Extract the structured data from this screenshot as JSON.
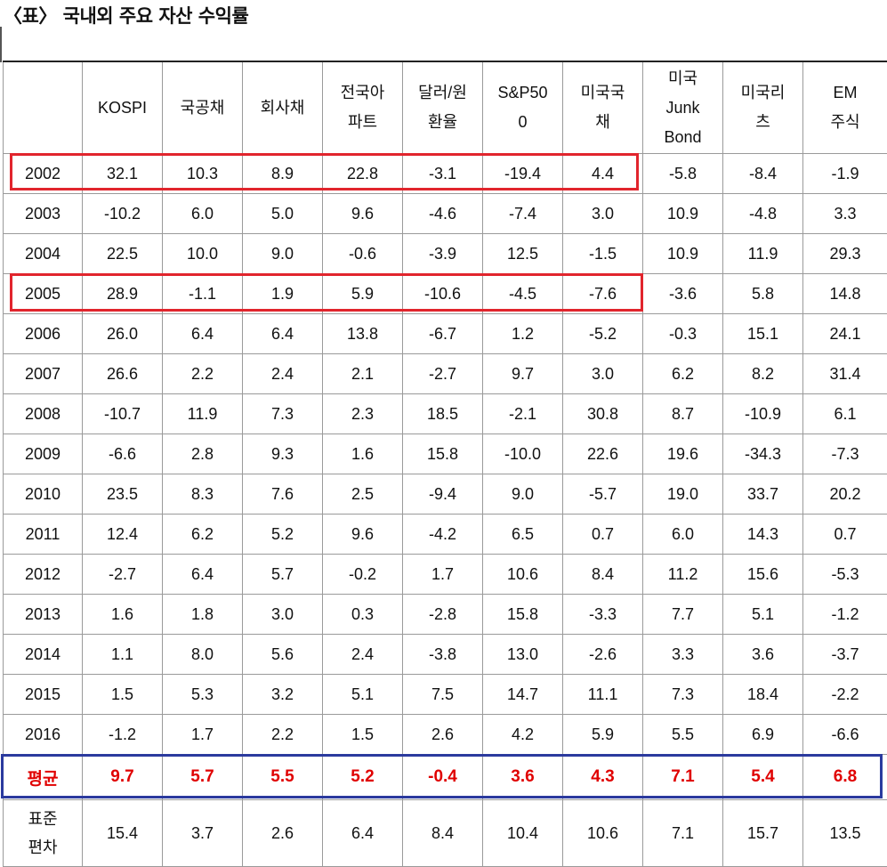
{
  "title": "〈표〉 국내외 주요 자산 수익률",
  "colors": {
    "highlight_red": "#e1252d",
    "highlight_blue": "#2b3a9e",
    "average_text": "#e00000"
  },
  "chart_data": {
    "type": "table",
    "columns": [
      "",
      "KOSPI",
      "국공채",
      "회사채",
      "전국아\n파트",
      "달러/원\n환율",
      "S&P50\n0",
      "미국국\n채",
      "미국\nJunk\nBond",
      "미국리\n츠",
      "EM\n주식"
    ],
    "rows": [
      [
        "2002",
        "32.1",
        "10.3",
        "8.9",
        "22.8",
        "-3.1",
        "-19.4",
        "4.4",
        "-5.8",
        "-8.4",
        "-1.9"
      ],
      [
        "2003",
        "-10.2",
        "6.0",
        "5.0",
        "9.6",
        "-4.6",
        "-7.4",
        "3.0",
        "10.9",
        "-4.8",
        "3.3"
      ],
      [
        "2004",
        "22.5",
        "10.0",
        "9.0",
        "-0.6",
        "-3.9",
        "12.5",
        "-1.5",
        "10.9",
        "11.9",
        "29.3"
      ],
      [
        "2005",
        "28.9",
        "-1.1",
        "1.9",
        "5.9",
        "-10.6",
        "-4.5",
        "-7.6",
        "-3.6",
        "5.8",
        "14.8"
      ],
      [
        "2006",
        "26.0",
        "6.4",
        "6.4",
        "13.8",
        "-6.7",
        "1.2",
        "-5.2",
        "-0.3",
        "15.1",
        "24.1"
      ],
      [
        "2007",
        "26.6",
        "2.2",
        "2.4",
        "2.1",
        "-2.7",
        "9.7",
        "3.0",
        "6.2",
        "8.2",
        "31.4"
      ],
      [
        "2008",
        "-10.7",
        "11.9",
        "7.3",
        "2.3",
        "18.5",
        "-2.1",
        "30.8",
        "8.7",
        "-10.9",
        "6.1"
      ],
      [
        "2009",
        "-6.6",
        "2.8",
        "9.3",
        "1.6",
        "15.8",
        "-10.0",
        "22.6",
        "19.6",
        "-34.3",
        "-7.3"
      ],
      [
        "2010",
        "23.5",
        "8.3",
        "7.6",
        "2.5",
        "-9.4",
        "9.0",
        "-5.7",
        "19.0",
        "33.7",
        "20.2"
      ],
      [
        "2011",
        "12.4",
        "6.2",
        "5.2",
        "9.6",
        "-4.2",
        "6.5",
        "0.7",
        "6.0",
        "14.3",
        "0.7"
      ],
      [
        "2012",
        "-2.7",
        "6.4",
        "5.7",
        "-0.2",
        "1.7",
        "10.6",
        "8.4",
        "11.2",
        "15.6",
        "-5.3"
      ],
      [
        "2013",
        "1.6",
        "1.8",
        "3.0",
        "0.3",
        "-2.8",
        "15.8",
        "-3.3",
        "7.7",
        "5.1",
        "-1.2"
      ],
      [
        "2014",
        "1.1",
        "8.0",
        "5.6",
        "2.4",
        "-3.8",
        "13.0",
        "-2.6",
        "3.3",
        "3.6",
        "-3.7"
      ],
      [
        "2015",
        "1.5",
        "5.3",
        "3.2",
        "5.1",
        "7.5",
        "14.7",
        "11.1",
        "7.3",
        "18.4",
        "-2.2"
      ],
      [
        "2016",
        "-1.2",
        "1.7",
        "2.2",
        "1.5",
        "2.6",
        "4.2",
        "5.9",
        "5.5",
        "6.9",
        "-6.6"
      ]
    ],
    "average": [
      "평균",
      "9.7",
      "5.7",
      "5.5",
      "5.2",
      "-0.4",
      "3.6",
      "4.3",
      "7.1",
      "5.4",
      "6.8"
    ],
    "std_dev": [
      "표준\n편차",
      "15.4",
      "3.7",
      "2.6",
      "6.4",
      "8.4",
      "10.4",
      "10.6",
      "7.1",
      "15.7",
      "13.5"
    ],
    "highlighted_rows": [
      "2002",
      "2005"
    ],
    "highlighted_summary": "평균"
  }
}
